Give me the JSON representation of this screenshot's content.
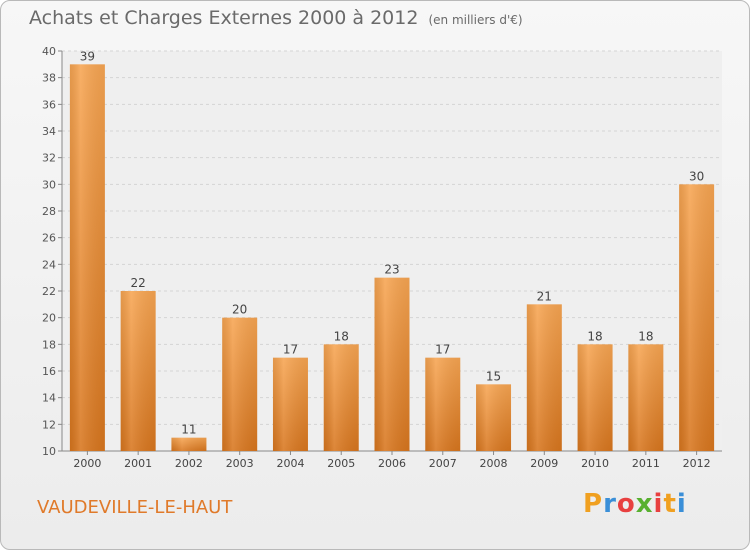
{
  "chart_data": {
    "type": "bar",
    "title": "Achats et Charges Externes 2000 à 2012",
    "subtitle": "(en milliers d'€)",
    "categories": [
      "2000",
      "2001",
      "2002",
      "2003",
      "2004",
      "2005",
      "2006",
      "2007",
      "2008",
      "2009",
      "2010",
      "2011",
      "2012"
    ],
    "values": [
      39,
      22,
      11,
      20,
      17,
      18,
      23,
      17,
      15,
      21,
      18,
      18,
      30
    ],
    "ylim": [
      10,
      40
    ],
    "yticks": [
      10,
      12,
      14,
      16,
      18,
      20,
      22,
      24,
      26,
      28,
      30,
      32,
      34,
      36,
      38,
      40
    ],
    "grid": true,
    "bar_color": "#f0902e",
    "xlabel": "",
    "ylabel": ""
  },
  "footer": {
    "commune": "VAUDEVILLE-LE-HAUT",
    "logo_letters": [
      "P",
      "r",
      "o",
      "x",
      "i",
      "t",
      "i"
    ],
    "logo_colors": [
      "#f0a020",
      "#3a8fd8",
      "#e84040",
      "#58b030",
      "#e84040",
      "#f0a020",
      "#3a8fd8"
    ]
  }
}
